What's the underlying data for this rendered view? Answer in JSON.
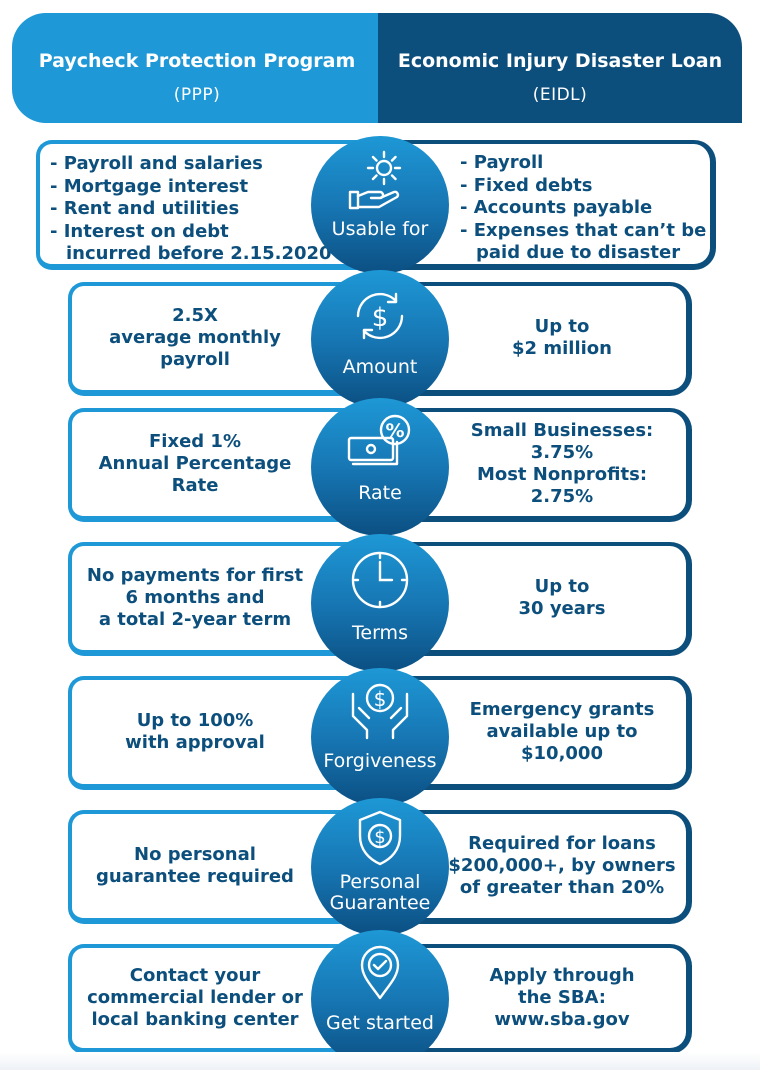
{
  "header": {
    "left": {
      "title": "Paycheck Protection Program",
      "subtitle": "(PPP)"
    },
    "right": {
      "title": "Economic Injury Disaster Loan",
      "subtitle": "(EIDL)"
    }
  },
  "rows": [
    {
      "label": "Usable for",
      "icon": "hand-gear-icon",
      "ppp": [
        "- Payroll and salaries",
        "- Mortgage interest",
        "- Rent and utilities",
        "- Interest on debt",
        "incurred before 2.15.2020"
      ],
      "eidl": [
        "- Payroll",
        "- Fixed debts",
        "- Accounts payable",
        "- Expenses that can’t be",
        "paid due to disaster"
      ]
    },
    {
      "label": "Amount",
      "icon": "dollar-cycle-icon",
      "ppp": [
        "2.5X",
        "average monthly",
        "payroll"
      ],
      "eidl": [
        "Up to",
        "$2 million"
      ]
    },
    {
      "label": "Rate",
      "icon": "money-percent-icon",
      "ppp": [
        "Fixed 1%",
        "Annual Percentage",
        "Rate"
      ],
      "eidl": [
        "Small Businesses:",
        "3.75%",
        "Most Nonprofits:",
        "2.75%"
      ]
    },
    {
      "label": "Terms",
      "icon": "clock-icon",
      "ppp": [
        "No payments for first",
        "6 months and",
        "a total 2-year term"
      ],
      "eidl": [
        "Up to",
        "30 years"
      ]
    },
    {
      "label": "Forgiveness",
      "icon": "hands-coin-icon",
      "ppp": [
        "Up to 100%",
        "with approval"
      ],
      "eidl": [
        "Emergency grants",
        "available up to",
        "$10,000"
      ]
    },
    {
      "label_lines": [
        "Personal",
        "Guarantee"
      ],
      "icon": "shield-dollar-icon",
      "ppp": [
        "No personal",
        "guarantee required"
      ],
      "eidl": [
        "Required for loans",
        "$200,000+, by owners",
        "of greater than 20%"
      ]
    },
    {
      "label": "Get started",
      "icon": "location-check-icon",
      "ppp": [
        "Contact your",
        "commercial lender or",
        "local banking center"
      ],
      "eidl": [
        "Apply through",
        "the SBA:",
        "www.sba.gov"
      ]
    }
  ],
  "colors": {
    "ppp_blue": "#1e98d6",
    "eidl_navy": "#0d4f7c",
    "white": "#ffffff"
  }
}
